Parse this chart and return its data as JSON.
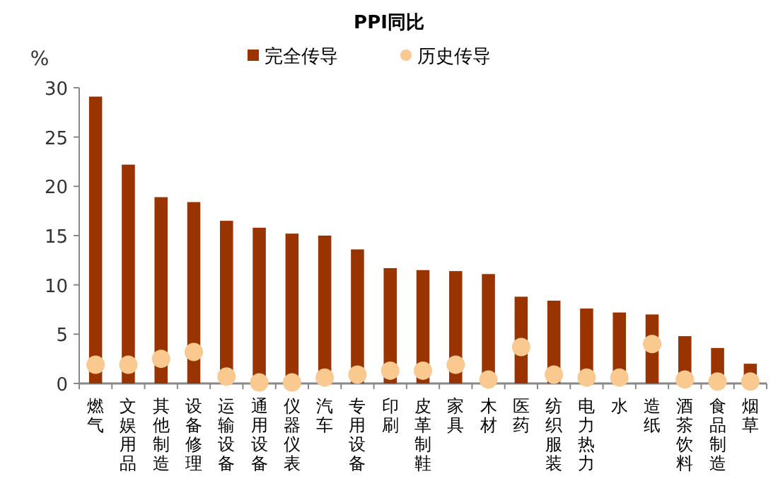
{
  "chart_data": {
    "type": "bar",
    "title": "PPI同比",
    "ylabel": "%",
    "categories": [
      "燃气",
      "文娱用品",
      "其他制造",
      "设备修理",
      "运输设备",
      "通用设备",
      "仪器仪表",
      "汽车",
      "专用设备",
      "印刷",
      "皮革制鞋",
      "家具",
      "木材",
      "医药",
      "纺织服装",
      "电力热力",
      "水",
      "造纸",
      "酒茶饮料",
      "食品制造",
      "烟草"
    ],
    "series": [
      {
        "name": "完全传导",
        "type": "bar",
        "color": "#993300",
        "values": [
          29.1,
          22.2,
          18.9,
          18.4,
          16.5,
          15.8,
          15.2,
          15.0,
          13.6,
          11.7,
          11.5,
          11.4,
          11.1,
          8.8,
          8.4,
          7.6,
          7.2,
          7.0,
          4.8,
          3.6,
          2.0
        ]
      },
      {
        "name": "历史传导",
        "type": "scatter",
        "marker": "circle",
        "color": "#fac990",
        "values": [
          1.9,
          1.9,
          2.5,
          3.2,
          0.7,
          0.1,
          0.1,
          0.6,
          0.9,
          1.3,
          1.3,
          1.9,
          0.4,
          3.7,
          0.9,
          0.6,
          0.6,
          4.0,
          0.4,
          0.2,
          0.2
        ]
      }
    ],
    "ylim": [
      0,
      30
    ],
    "yticks": [
      0,
      5,
      10,
      15,
      20,
      25,
      30
    ],
    "grid": false,
    "legend": "top"
  }
}
